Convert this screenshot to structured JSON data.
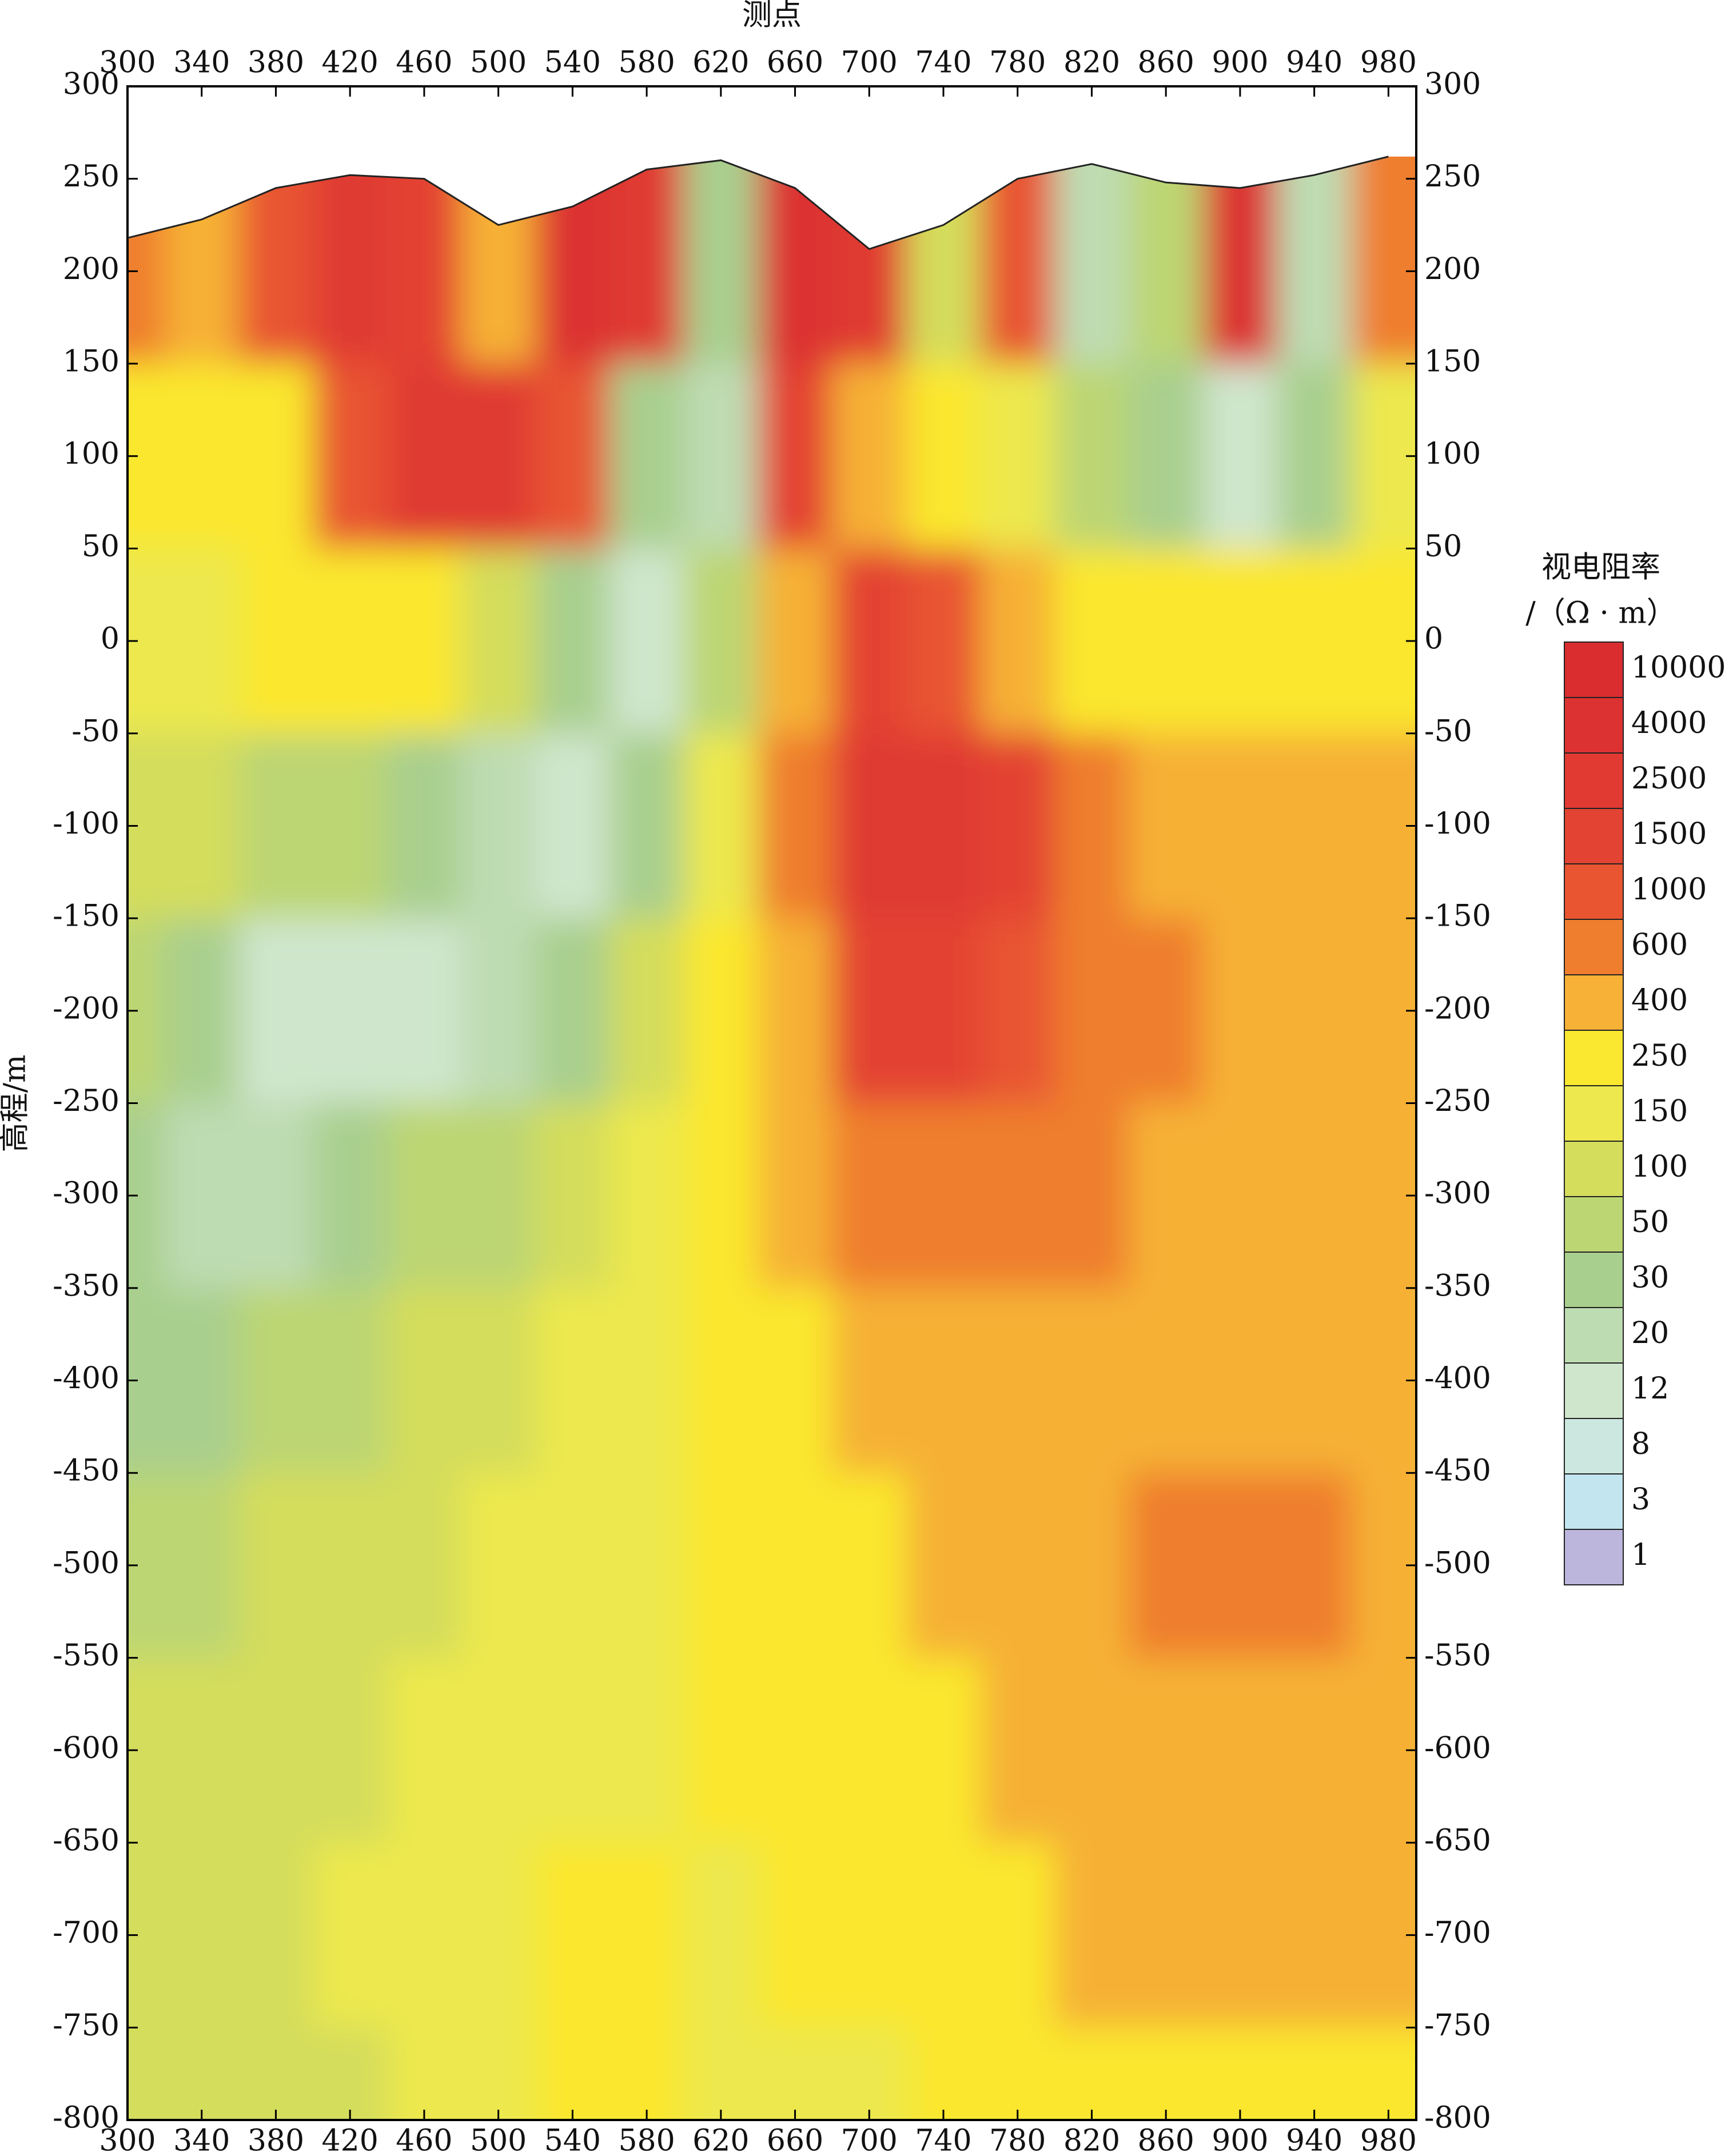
{
  "chart_data": {
    "type": "contour",
    "x_title": "测点",
    "y_title": "高程/m",
    "legend_title": "视电阻率",
    "legend_unit": "/（Ω · m）",
    "x": [
      300,
      340,
      380,
      420,
      460,
      500,
      540,
      580,
      620,
      660,
      700,
      740,
      780,
      820,
      860,
      900,
      940,
      980
    ],
    "y": [
      200,
      100,
      0,
      -100,
      -200,
      -300,
      -400,
      -500,
      -600,
      -700,
      -800
    ],
    "surface": [
      218,
      228,
      245,
      252,
      250,
      225,
      235,
      255,
      260,
      245,
      212,
      225,
      250,
      258,
      248,
      245,
      252,
      262
    ],
    "z": [
      [
        600,
        400,
        1000,
        2500,
        1500,
        400,
        4000,
        2500,
        30,
        4000,
        2500,
        100,
        1000,
        20,
        50,
        4000,
        20,
        600
      ],
      [
        250,
        250,
        250,
        1000,
        2500,
        2500,
        1000,
        30,
        20,
        1500,
        400,
        250,
        150,
        50,
        30,
        12,
        30,
        150
      ],
      [
        150,
        150,
        250,
        250,
        250,
        100,
        30,
        12,
        50,
        400,
        1500,
        1000,
        400,
        250,
        250,
        250,
        250,
        250
      ],
      [
        100,
        100,
        50,
        50,
        30,
        20,
        12,
        30,
        150,
        600,
        2500,
        2500,
        1500,
        600,
        400,
        400,
        400,
        400
      ],
      [
        50,
        30,
        12,
        12,
        12,
        20,
        30,
        100,
        250,
        400,
        1500,
        1500,
        1000,
        600,
        600,
        400,
        400,
        400
      ],
      [
        30,
        20,
        20,
        30,
        50,
        50,
        100,
        150,
        250,
        400,
        600,
        600,
        600,
        600,
        400,
        400,
        400,
        400
      ],
      [
        30,
        30,
        50,
        50,
        100,
        100,
        150,
        150,
        250,
        250,
        400,
        400,
        400,
        400,
        400,
        400,
        400,
        400
      ],
      [
        50,
        50,
        100,
        100,
        100,
        150,
        150,
        150,
        250,
        250,
        250,
        400,
        400,
        400,
        600,
        600,
        600,
        400
      ],
      [
        100,
        100,
        100,
        100,
        150,
        150,
        150,
        150,
        250,
        250,
        250,
        250,
        400,
        400,
        400,
        400,
        400,
        400
      ],
      [
        100,
        100,
        100,
        150,
        150,
        150,
        250,
        250,
        150,
        250,
        250,
        250,
        250,
        400,
        400,
        400,
        400,
        400
      ],
      [
        100,
        100,
        100,
        100,
        150,
        150,
        250,
        250,
        150,
        150,
        150,
        250,
        250,
        250,
        250,
        250,
        250,
        250
      ]
    ],
    "levels": [
      1,
      3,
      8,
      12,
      20,
      30,
      50,
      100,
      150,
      250,
      400,
      600,
      1000,
      1500,
      2500,
      4000,
      10000
    ],
    "colors": [
      "#bcb6dc",
      "#c3e5ef",
      "#cbe7e0",
      "#cfe6cc",
      "#bedcb2",
      "#a9cf8e",
      "#bcd673",
      "#d4dd5c",
      "#ece84e",
      "#fae72f",
      "#f6b136",
      "#ef7e2f",
      "#e85530",
      "#e34332",
      "#e03a32",
      "#dc3332",
      "#d92d30"
    ],
    "xlim": [
      300,
      995
    ],
    "ylim": [
      -800,
      300
    ],
    "xticks": [
      300,
      340,
      380,
      420,
      460,
      500,
      540,
      580,
      620,
      660,
      700,
      740,
      780,
      820,
      860,
      900,
      940,
      980
    ],
    "yticks": [
      300,
      250,
      200,
      150,
      100,
      50,
      0,
      -50,
      -100,
      -150,
      -200,
      -250,
      -300,
      -350,
      -400,
      -450,
      -500,
      -550,
      -600,
      -650,
      -700,
      -750,
      -800
    ]
  }
}
